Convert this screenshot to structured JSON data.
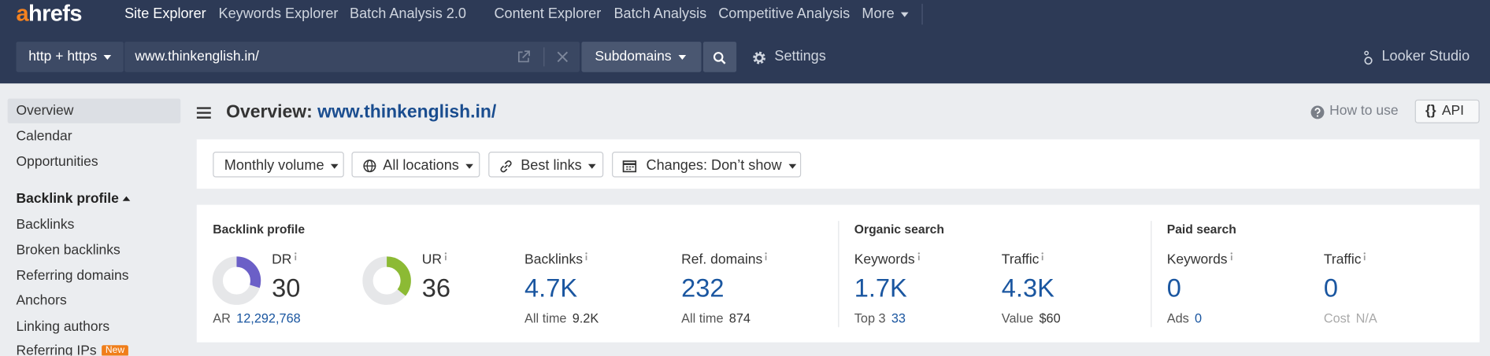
{
  "nav": {
    "logo": "ahrefs",
    "items": [
      "Site Explorer",
      "Keywords Explorer",
      "Batch Analysis 2.0",
      "Content Explorer",
      "Batch Analysis",
      "Competitive Analysis"
    ],
    "more": "More"
  },
  "search": {
    "protocol": "http + https",
    "url": "www.thinkenglish.in/",
    "mode": "Subdomains",
    "settings": "Settings",
    "looker": "Looker Studio"
  },
  "sidebar": {
    "items": [
      "Overview",
      "Calendar",
      "Opportunities"
    ],
    "section": "Backlink profile",
    "section_items": [
      "Backlinks",
      "Broken backlinks",
      "Referring domains",
      "Anchors",
      "Linking authors",
      "Referring IPs"
    ],
    "badge": "New"
  },
  "header": {
    "title": "Overview:",
    "domain": "www.thinkenglish.in/",
    "help": "How to use",
    "api": "API"
  },
  "filters": [
    "Monthly volume",
    "All locations",
    "Best links",
    "Changes: Don’t show"
  ],
  "metrics": [
    {
      "title": "Backlink profile",
      "cards": [
        {
          "label": "DR",
          "value": 30,
          "sub_label": "AR",
          "sub_value": "12,292,768"
        },
        {
          "label": "UR",
          "value": 36
        },
        {
          "label": "Backlinks",
          "value": "4.7K",
          "sub_label": "All time",
          "sub_value": "9.2K"
        },
        {
          "label": "Ref. domains",
          "value": "232",
          "sub_label": "All time",
          "sub_value": "874"
        }
      ]
    },
    {
      "title": "Organic search",
      "cards": [
        {
          "label": "Keywords",
          "value": "1.7K",
          "sub_label": "Top 3",
          "sub_value": "33"
        },
        {
          "label": "Traffic",
          "value": "4.3K",
          "sub_label": "Value",
          "sub_value": "$60"
        }
      ]
    },
    {
      "title": "Paid search",
      "cards": [
        {
          "label": "Keywords",
          "value": "0",
          "sub_label": "Ads",
          "sub_value": "0"
        },
        {
          "label": "Traffic",
          "value": "0",
          "sub_label": "Cost",
          "sub_value": "N/A"
        }
      ]
    }
  ]
}
